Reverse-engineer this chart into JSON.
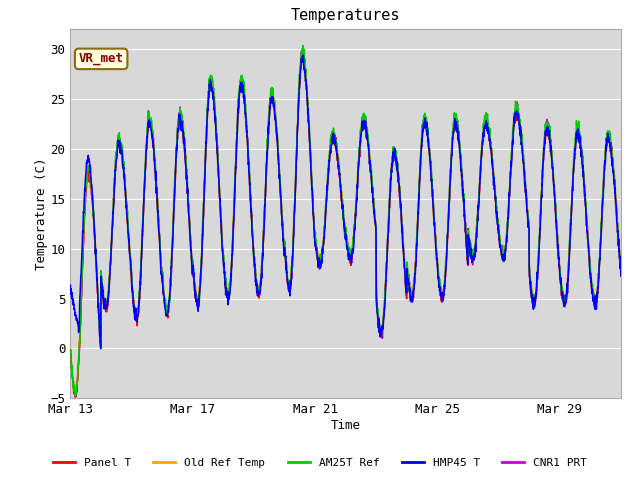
{
  "title": "Temperatures",
  "xlabel": "Time",
  "ylabel": "Temperature (C)",
  "ylim": [
    -5,
    32
  ],
  "yticks": [
    -5,
    0,
    5,
    10,
    15,
    20,
    25,
    30
  ],
  "xlim_days": [
    0,
    18
  ],
  "xtick_days": [
    0,
    4,
    8,
    12,
    16
  ],
  "xtick_labels": [
    "Mar 13",
    "Mar 17",
    "Mar 21",
    "Mar 25",
    "Mar 29"
  ],
  "annotation_text": "VR_met",
  "series_colors": [
    "#ff0000",
    "#ffa500",
    "#00cc00",
    "#0000ff",
    "#cc00cc"
  ],
  "series_labels": [
    "Panel T",
    "Old Ref Temp",
    "AM25T Ref",
    "HMP45 T",
    "CNR1 PRT"
  ],
  "line_width": 1.1,
  "n_points": 2160,
  "total_days": 18,
  "bg_color": "#d8d8d8",
  "grid_line_color": "#ffffff",
  "daily_cycles": [
    {
      "tmin": -4.5,
      "tmax": 17.5
    },
    {
      "tmin": 4.0,
      "tmax": 20.5
    },
    {
      "tmin": 3.0,
      "tmax": 22.5
    },
    {
      "tmin": 3.5,
      "tmax": 23.0
    },
    {
      "tmin": 4.5,
      "tmax": 26.5
    },
    {
      "tmin": 5.0,
      "tmax": 26.5
    },
    {
      "tmin": 5.5,
      "tmax": 25.0
    },
    {
      "tmin": 6.0,
      "tmax": 29.0
    },
    {
      "tmin": 8.5,
      "tmax": 21.0
    },
    {
      "tmin": 9.0,
      "tmax": 22.5
    },
    {
      "tmin": 1.5,
      "tmax": 19.5
    },
    {
      "tmin": 5.0,
      "tmax": 22.5
    },
    {
      "tmin": 5.0,
      "tmax": 22.5
    },
    {
      "tmin": 9.0,
      "tmax": 22.5
    },
    {
      "tmin": 9.0,
      "tmax": 23.5
    },
    {
      "tmin": 4.5,
      "tmax": 22.0
    },
    {
      "tmin": 4.5,
      "tmax": 21.5
    },
    {
      "tmin": 4.5,
      "tmax": 21.0
    }
  ]
}
